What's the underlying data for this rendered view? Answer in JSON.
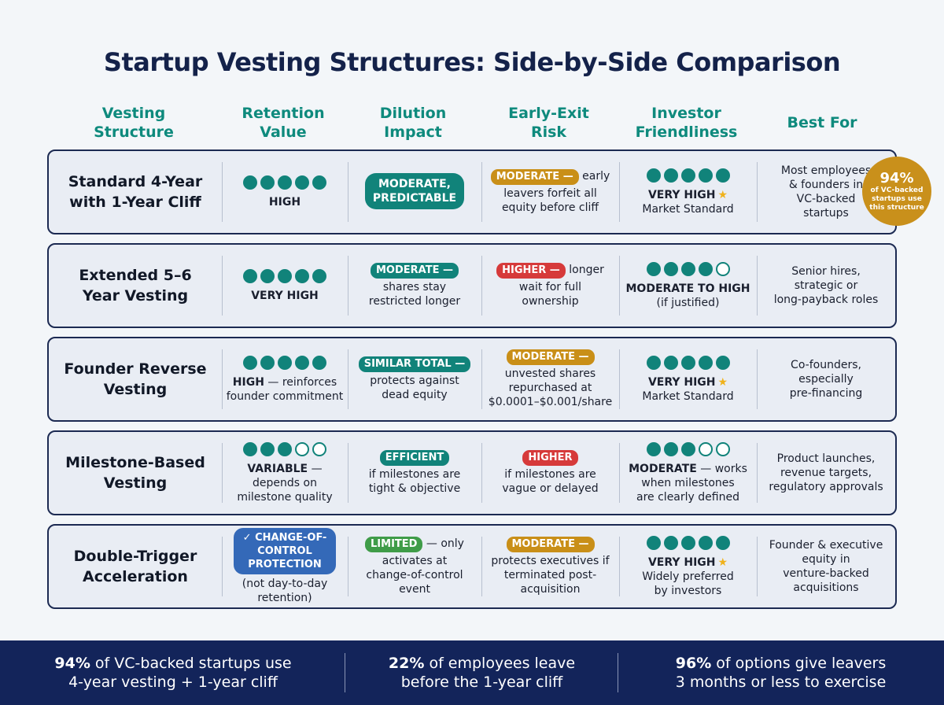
{
  "title": "Startup Vesting Structures: Side-by-Side Comparison",
  "headers": {
    "structure": [
      "Vesting",
      "Structure"
    ],
    "retention": [
      "Retention",
      "Value"
    ],
    "dilution": [
      "Dilution",
      "Impact"
    ],
    "exit_risk": [
      "Early-Exit",
      "Risk"
    ],
    "investor": [
      "Investor",
      "Friendliness"
    ],
    "best_for": [
      "Best For"
    ]
  },
  "rows": [
    {
      "name": [
        "Standard 4-Year",
        "with 1-Year Cliff"
      ],
      "retention": {
        "rating": 5,
        "label": "HIGH",
        "note": []
      },
      "dilution": {
        "pill": "MODERATE, PREDICTABLE",
        "pill_lines": [
          "MODERATE,",
          "PREDICTABLE"
        ],
        "pill_color": "teal",
        "suffix": "",
        "note": []
      },
      "exit_risk": {
        "pill": "MODERATE —",
        "pill_color": "gold",
        "suffix": " early",
        "note": [
          "leavers forfeit all",
          "equity before cliff"
        ]
      },
      "investor": {
        "rating": 5,
        "label": "VERY HIGH",
        "star": "★",
        "suffix": "",
        "note": [
          "Market Standard"
        ]
      },
      "best_for": [
        "Most employees",
        "& founders in",
        "VC-backed",
        "startups"
      ]
    },
    {
      "name": [
        "Extended 5–6",
        "Year Vesting"
      ],
      "retention": {
        "rating": 5,
        "label": "VERY HIGH",
        "note": []
      },
      "dilution": {
        "pill": "MODERATE —",
        "pill_color": "teal",
        "suffix": "",
        "note": [
          "shares stay",
          "restricted longer"
        ]
      },
      "exit_risk": {
        "pill": "HIGHER —",
        "pill_color": "red",
        "suffix": " longer",
        "note": [
          "wait for full",
          "ownership"
        ]
      },
      "investor": {
        "rating": 4,
        "label": "MODERATE TO HIGH",
        "star": "",
        "suffix": "",
        "note": [
          "(if justified)"
        ]
      },
      "best_for": [
        "Senior hires,",
        "strategic or",
        "long-payback roles"
      ]
    },
    {
      "name": [
        "Founder Reverse",
        "Vesting"
      ],
      "retention": {
        "rating": 5,
        "label": "HIGH",
        "suffix": " — reinforces",
        "note": [
          "founder commitment"
        ]
      },
      "dilution": {
        "pill": "SIMILAR TOTAL —",
        "pill_color": "teal",
        "suffix": "",
        "note": [
          "protects against",
          "dead equity"
        ]
      },
      "exit_risk": {
        "pill": "MODERATE —",
        "pill_color": "gold",
        "suffix": "",
        "note": [
          "unvested shares",
          "repurchased at",
          "$0.0001–$0.001/share"
        ]
      },
      "investor": {
        "rating": 5,
        "label": "VERY HIGH",
        "star": "★",
        "suffix": "",
        "note": [
          "Market Standard"
        ]
      },
      "best_for": [
        "Co-founders,",
        "especially",
        "pre-financing"
      ]
    },
    {
      "name": [
        "Milestone-Based",
        "Vesting"
      ],
      "retention": {
        "rating": 3,
        "label": "VARIABLE",
        "suffix": " —",
        "note": [
          "depends on",
          "milestone quality"
        ]
      },
      "dilution": {
        "pill": "EFFICIENT",
        "pill_color": "teal",
        "suffix": "",
        "note": [
          "if milestones are",
          "tight & objective"
        ]
      },
      "exit_risk": {
        "pill": "HIGHER",
        "pill_color": "red",
        "suffix": "",
        "note": [
          "if milestones are",
          "vague or delayed"
        ]
      },
      "investor": {
        "rating": 3,
        "label": "MODERATE",
        "star": "",
        "suffix": " — works",
        "note": [
          "when milestones",
          "are clearly defined"
        ]
      },
      "best_for": [
        "Product launches,",
        "revenue targets,",
        "regulatory approvals"
      ]
    },
    {
      "name": [
        "Double-Trigger",
        "Acceleration"
      ],
      "retention": {
        "pill_lines": [
          "✓ CHANGE-OF-",
          "CONTROL",
          "PROTECTION"
        ],
        "note": [
          "(not day-to-day",
          "retention)"
        ]
      },
      "dilution": {
        "pill": "LIMITED",
        "pill_color": "green",
        "suffix": " — only",
        "note": [
          "activates at",
          "change-of-control",
          "event"
        ]
      },
      "exit_risk": {
        "pill": "MODERATE —",
        "pill_color": "gold",
        "suffix": "",
        "note": [
          "protects executives if",
          "terminated post-",
          "acquisition"
        ]
      },
      "investor": {
        "rating": 5,
        "label": "VERY HIGH",
        "star": "★",
        "suffix": "",
        "note": [
          "Widely preferred",
          "by investors"
        ]
      },
      "best_for": [
        "Founder & executive",
        "equity in",
        "venture-backed",
        "acquisitions"
      ]
    }
  ],
  "badge": {
    "pct": "94%",
    "text": [
      "of VC-backed",
      "startups use",
      "this structure"
    ]
  },
  "footer": [
    {
      "highlight": "94%",
      "rest": " of VC-backed startups use",
      "line2": "4-year vesting + 1-year cliff"
    },
    {
      "highlight": "22%",
      "rest": " of employees leave",
      "line2": "before the 1-year cliff"
    },
    {
      "highlight": "96%",
      "rest": " of options give leavers",
      "line2": "3 months or less to exercise"
    }
  ],
  "colors": {
    "teal": "#11837a",
    "gold": "#c98f18",
    "red": "#d63a3a",
    "green": "#3f9c48",
    "blue": "#3469b8",
    "navy": "#13245a"
  }
}
